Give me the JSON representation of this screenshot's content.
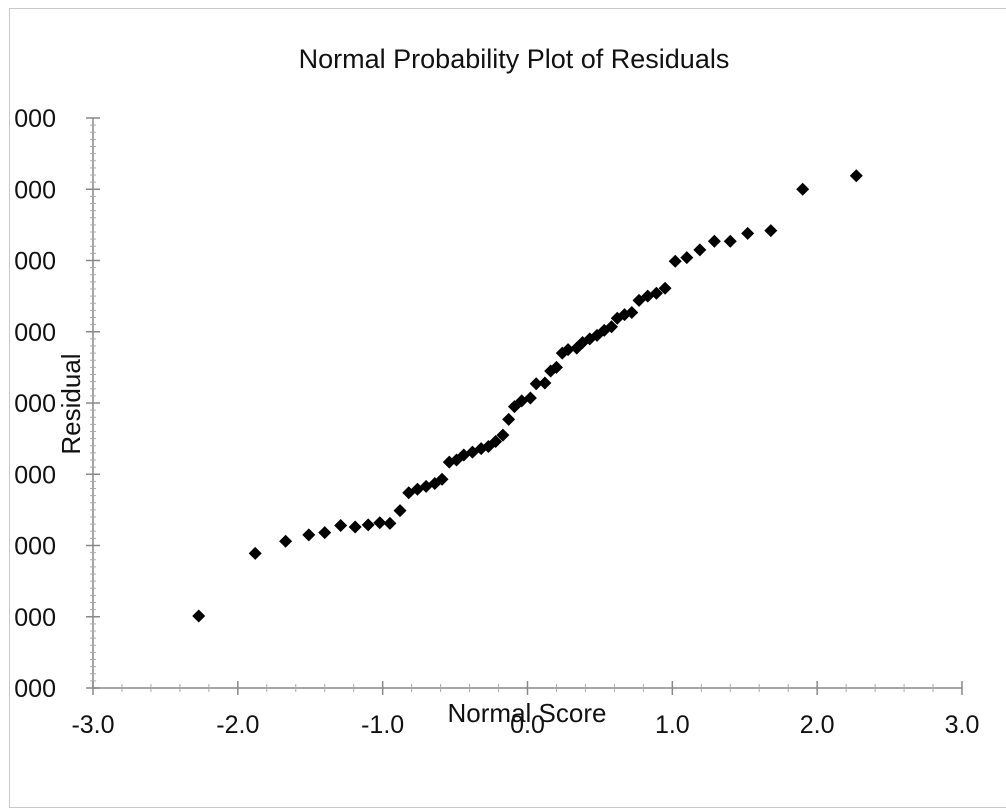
{
  "chart_data": {
    "type": "scatter",
    "title": "Normal Probability Plot of Residuals",
    "xlabel": "Normal Score",
    "ylabel": "Residual",
    "xlim": [
      -3.0,
      3.0
    ],
    "x_ticks": [
      "-3.0",
      "-2.0",
      "-1.0",
      "0.0",
      "1.0",
      "2.0",
      "3.0"
    ],
    "y_ticks": [
      "000",
      "000",
      "000",
      "000",
      "000",
      "000",
      "000",
      "000",
      "000"
    ],
    "marker": "diamond",
    "marker_color": "#000000",
    "grid": false,
    "points": [
      {
        "x": -2.27,
        "y": 1.01
      },
      {
        "x": -1.88,
        "y": 1.89
      },
      {
        "x": -1.67,
        "y": 2.06
      },
      {
        "x": -1.51,
        "y": 2.15
      },
      {
        "x": -1.4,
        "y": 2.18
      },
      {
        "x": -1.29,
        "y": 2.28
      },
      {
        "x": -1.19,
        "y": 2.26
      },
      {
        "x": -1.1,
        "y": 2.29
      },
      {
        "x": -1.02,
        "y": 2.32
      },
      {
        "x": -0.95,
        "y": 2.31
      },
      {
        "x": -0.88,
        "y": 2.49
      },
      {
        "x": -0.82,
        "y": 2.74
      },
      {
        "x": -0.76,
        "y": 2.79
      },
      {
        "x": -0.7,
        "y": 2.83
      },
      {
        "x": -0.64,
        "y": 2.87
      },
      {
        "x": -0.59,
        "y": 2.93
      },
      {
        "x": -0.54,
        "y": 3.17
      },
      {
        "x": -0.49,
        "y": 3.2
      },
      {
        "x": -0.44,
        "y": 3.27
      },
      {
        "x": -0.38,
        "y": 3.31
      },
      {
        "x": -0.32,
        "y": 3.36
      },
      {
        "x": -0.27,
        "y": 3.39
      },
      {
        "x": -0.22,
        "y": 3.46
      },
      {
        "x": -0.17,
        "y": 3.55
      },
      {
        "x": -0.13,
        "y": 3.77
      },
      {
        "x": -0.09,
        "y": 3.95
      },
      {
        "x": -0.04,
        "y": 4.03
      },
      {
        "x": 0.02,
        "y": 4.07
      },
      {
        "x": 0.06,
        "y": 4.27
      },
      {
        "x": 0.12,
        "y": 4.28
      },
      {
        "x": 0.16,
        "y": 4.45
      },
      {
        "x": 0.2,
        "y": 4.5
      },
      {
        "x": 0.24,
        "y": 4.7
      },
      {
        "x": 0.28,
        "y": 4.75
      },
      {
        "x": 0.34,
        "y": 4.77
      },
      {
        "x": 0.38,
        "y": 4.85
      },
      {
        "x": 0.43,
        "y": 4.9
      },
      {
        "x": 0.48,
        "y": 4.95
      },
      {
        "x": 0.53,
        "y": 5.02
      },
      {
        "x": 0.58,
        "y": 5.07
      },
      {
        "x": 0.62,
        "y": 5.19
      },
      {
        "x": 0.67,
        "y": 5.24
      },
      {
        "x": 0.72,
        "y": 5.27
      },
      {
        "x": 0.77,
        "y": 5.44
      },
      {
        "x": 0.83,
        "y": 5.5
      },
      {
        "x": 0.89,
        "y": 5.54
      },
      {
        "x": 0.95,
        "y": 5.61
      },
      {
        "x": 1.02,
        "y": 5.99
      },
      {
        "x": 1.1,
        "y": 6.04
      },
      {
        "x": 1.19,
        "y": 6.15
      },
      {
        "x": 1.29,
        "y": 6.27
      },
      {
        "x": 1.4,
        "y": 6.27
      },
      {
        "x": 1.52,
        "y": 6.38
      },
      {
        "x": 1.68,
        "y": 6.42
      },
      {
        "x": 1.9,
        "y": 7.0
      },
      {
        "x": 2.27,
        "y": 7.19
      }
    ]
  }
}
